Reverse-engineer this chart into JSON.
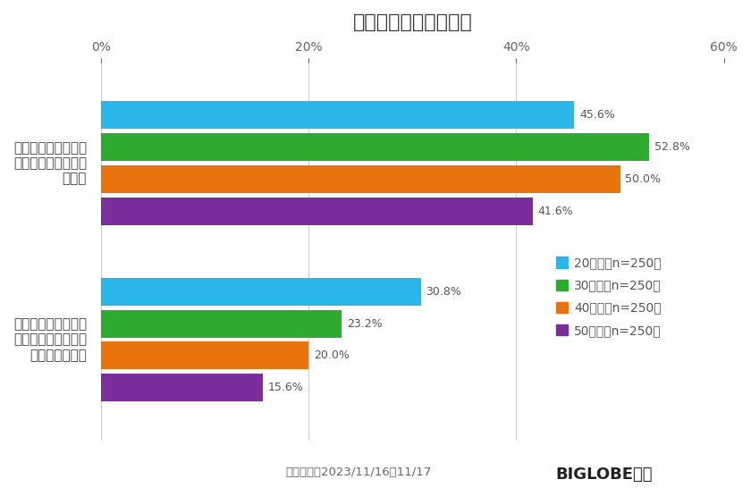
{
  "title": "クリスマスの出費予定",
  "categories": [
    "クリスマスの出費を\nある程度は想定して\n　いる",
    "今年のクリスマスは\nコロナ禍よりもお金\n　を使うと思う"
  ],
  "series": [
    {
      "label": "20代　（n=250）",
      "color": "#29B6E8",
      "values": [
        45.6,
        30.8
      ]
    },
    {
      "label": "30代　（n=250）",
      "color": "#2EAA2E",
      "values": [
        52.8,
        23.2
      ]
    },
    {
      "label": "40代　（n=250）",
      "color": "#E8720C",
      "values": [
        50.0,
        20.0
      ]
    },
    {
      "label": "50代　（n=250）",
      "color": "#7B2D9B",
      "values": [
        41.6,
        15.6
      ]
    }
  ],
  "xlim": [
    0,
    60
  ],
  "xticks": [
    0,
    20,
    40,
    60
  ],
  "xticklabels": [
    "0%",
    "20%",
    "40%",
    "60%"
  ],
  "bar_height": 0.22,
  "footnote": "調査期間：2023/11/16～11/17",
  "footnote2": "BIGLOBE調べ",
  "background_color": "#FFFFFF",
  "label_fontsize": 11,
  "title_fontsize": 16,
  "value_fontsize": 9,
  "tick_fontsize": 10,
  "legend_fontsize": 10,
  "group_centers": [
    2.2,
    0.8
  ],
  "ylim": [
    0.0,
    3.0
  ]
}
